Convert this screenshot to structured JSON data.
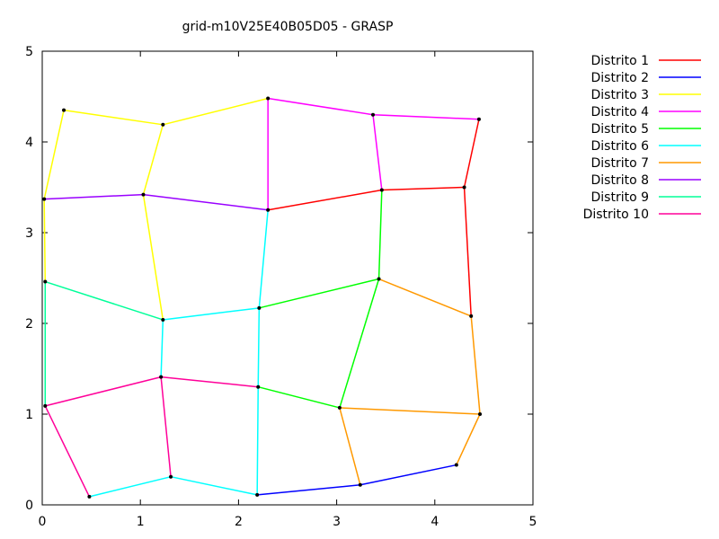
{
  "chart_data": {
    "type": "line",
    "title": "grid-m10V25E40B05D05 -  GRASP",
    "xlabel": "",
    "ylabel": "",
    "xlim": [
      0,
      5
    ],
    "ylim": [
      0,
      5
    ],
    "xticks": [
      0,
      1,
      2,
      3,
      4,
      5
    ],
    "yticks": [
      0,
      1,
      2,
      3,
      4,
      5
    ],
    "grid": false,
    "legend_position": "outside-right",
    "vertices": [
      [
        0.48,
        0.09
      ],
      [
        1.31,
        0.31
      ],
      [
        2.19,
        0.11
      ],
      [
        3.24,
        0.22
      ],
      [
        4.22,
        0.44
      ],
      [
        0.03,
        1.09
      ],
      [
        1.21,
        1.41
      ],
      [
        2.2,
        1.3
      ],
      [
        3.03,
        1.07
      ],
      [
        4.46,
        1.0
      ],
      [
        0.03,
        2.46
      ],
      [
        1.23,
        2.04
      ],
      [
        2.21,
        2.17
      ],
      [
        3.43,
        2.49
      ],
      [
        4.37,
        2.08
      ],
      [
        0.02,
        3.37
      ],
      [
        1.03,
        3.42
      ],
      [
        2.3,
        3.25
      ],
      [
        3.46,
        3.47
      ],
      [
        4.3,
        3.5
      ],
      [
        0.22,
        4.35
      ],
      [
        1.23,
        4.19
      ],
      [
        2.3,
        4.48
      ],
      [
        3.37,
        4.3
      ],
      [
        4.45,
        4.25
      ]
    ],
    "series": [
      {
        "name": "Distrito 1",
        "color": "#ff0000",
        "edges": [
          [
            17,
            18
          ],
          [
            18,
            19
          ],
          [
            19,
            24
          ],
          [
            19,
            14
          ]
        ]
      },
      {
        "name": "Distrito 2",
        "color": "#0000ff",
        "edges": [
          [
            2,
            3
          ],
          [
            3,
            4
          ]
        ]
      },
      {
        "name": "Distrito 3",
        "color": "#ffff00",
        "edges": [
          [
            15,
            20
          ],
          [
            20,
            21
          ],
          [
            21,
            22
          ],
          [
            21,
            16
          ],
          [
            16,
            11
          ],
          [
            15,
            10
          ]
        ]
      },
      {
        "name": "Distrito 4",
        "color": "#ff00ff",
        "edges": [
          [
            22,
            23
          ],
          [
            23,
            24
          ],
          [
            22,
            17
          ],
          [
            23,
            18
          ]
        ]
      },
      {
        "name": "Distrito 5",
        "color": "#00ff00",
        "edges": [
          [
            12,
            13
          ],
          [
            13,
            18
          ],
          [
            13,
            8
          ],
          [
            8,
            7
          ]
        ]
      },
      {
        "name": "Distrito 6",
        "color": "#00ffff",
        "edges": [
          [
            0,
            1
          ],
          [
            1,
            2
          ],
          [
            2,
            7
          ],
          [
            7,
            12
          ],
          [
            12,
            17
          ],
          [
            12,
            11
          ],
          [
            11,
            6
          ]
        ]
      },
      {
        "name": "Distrito 7",
        "color": "#ff9900",
        "edges": [
          [
            3,
            8
          ],
          [
            8,
            9
          ],
          [
            9,
            4
          ],
          [
            9,
            14
          ],
          [
            14,
            13
          ]
        ]
      },
      {
        "name": "Distrito 8",
        "color": "#9900ff",
        "edges": [
          [
            15,
            16
          ],
          [
            16,
            17
          ]
        ]
      },
      {
        "name": "Distrito 9",
        "color": "#00ff99",
        "edges": [
          [
            10,
            11
          ],
          [
            10,
            5
          ]
        ]
      },
      {
        "name": "Distrito 10",
        "color": "#ff0099",
        "edges": [
          [
            5,
            6
          ],
          [
            6,
            7
          ],
          [
            6,
            1
          ],
          [
            5,
            0
          ]
        ]
      }
    ]
  }
}
